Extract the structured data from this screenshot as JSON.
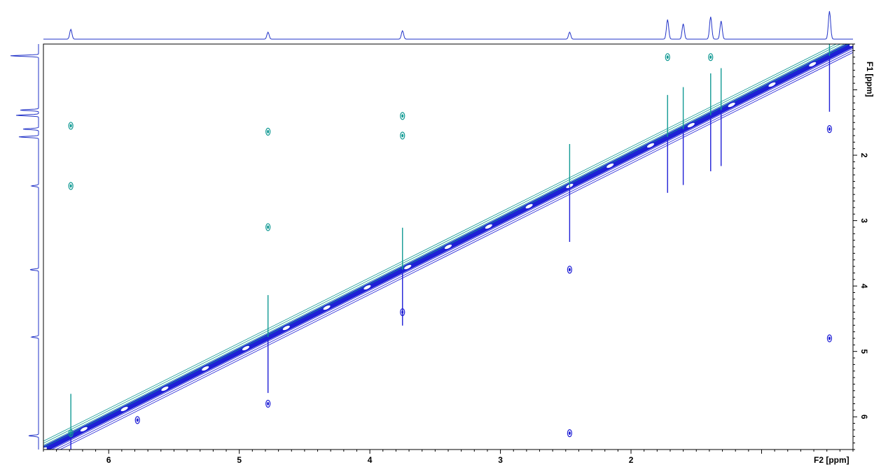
{
  "chart_data": {
    "type": "contour",
    "spectrum": "2D homonuclear NMR (F2 vs F1)",
    "xlabel": "F2 [ppm]",
    "ylabel": "F1 [ppm]",
    "xlim": [
      6.5,
      0.3
    ],
    "ylim": [
      0.3,
      6.5
    ],
    "x_axis_reversed": true,
    "y_axis_reversed": true,
    "x_tick_labels": [
      "6",
      "5",
      "4",
      "3",
      "2"
    ],
    "x_ticks": [
      6,
      5,
      4,
      3,
      2
    ],
    "y_tick_labels": [
      "2",
      "3",
      "4",
      "5",
      "6"
    ],
    "y_ticks": [
      2,
      3,
      4,
      5,
      6
    ],
    "x_minor_step": 0.1,
    "y_minor_step": 0.1,
    "grid": false,
    "colors": {
      "positive_contours": "#1f1fd6",
      "negative_contours": "#129a94",
      "projection": "#2233c8",
      "frame": "#000000"
    },
    "diagonal": {
      "from_ppm": 6.5,
      "to_ppm": 0.3
    },
    "projection_peaks_ppm": [
      6.29,
      4.78,
      3.75,
      2.47,
      1.72,
      1.6,
      1.39,
      1.31,
      0.48
    ],
    "cross_peaks": [
      {
        "f2": 6.29,
        "f1": 1.55
      },
      {
        "f2": 6.29,
        "f1": 2.47
      },
      {
        "f2": 6.29,
        "f1": 6.25
      },
      {
        "f2": 4.78,
        "f1": 1.64
      },
      {
        "f2": 4.78,
        "f1": 3.1
      },
      {
        "f2": 4.78,
        "f1": 5.8
      },
      {
        "f2": 3.75,
        "f1": 1.4
      },
      {
        "f2": 3.75,
        "f1": 1.7
      },
      {
        "f2": 3.75,
        "f1": 4.4
      },
      {
        "f2": 2.47,
        "f1": 3.75
      },
      {
        "f2": 2.47,
        "f1": 6.25
      },
      {
        "f2": 5.78,
        "f1": 6.05
      },
      {
        "f2": 1.72,
        "f1": 0.5
      },
      {
        "f2": 1.39,
        "f1": 0.5
      },
      {
        "f2": 0.48,
        "f1": 1.6
      },
      {
        "f2": 0.48,
        "f1": 4.8
      }
    ]
  }
}
